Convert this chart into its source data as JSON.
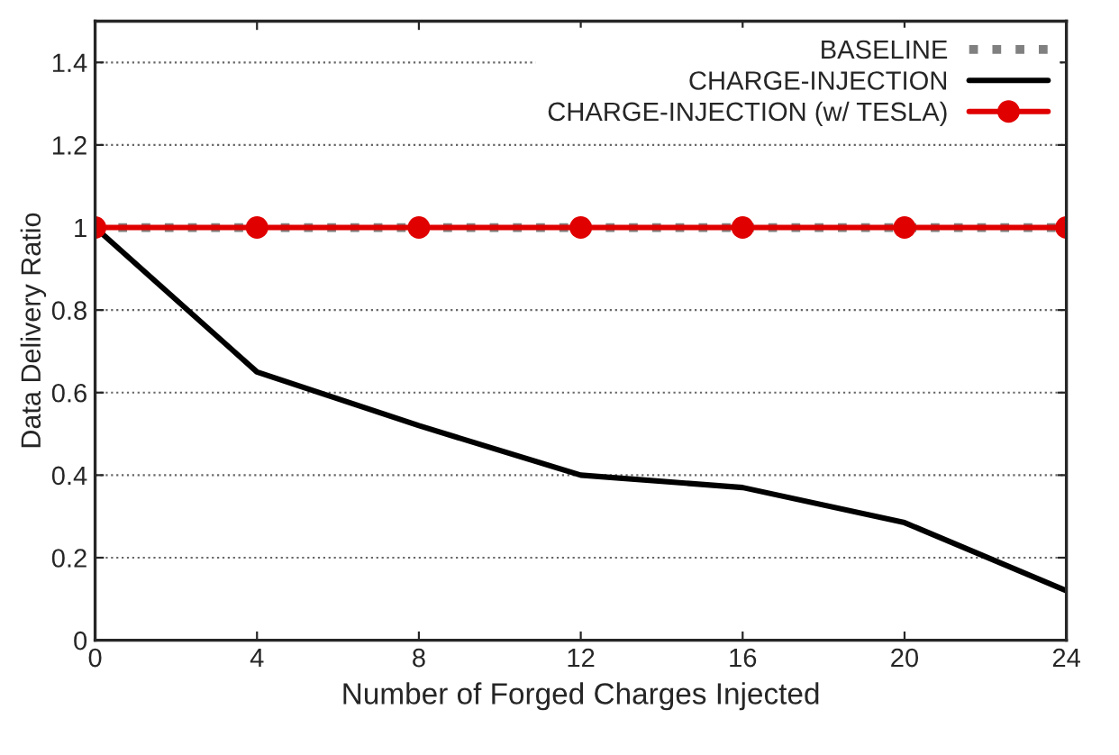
{
  "chart_data": {
    "type": "line",
    "xlabel": "Number of Forged Charges Injected",
    "ylabel": "Data Delivery Ratio",
    "x": [
      0,
      4,
      8,
      12,
      16,
      20,
      24
    ],
    "series": [
      {
        "name": "BASELINE",
        "color": "#808080",
        "values": [
          1,
          1,
          1,
          1,
          1,
          1,
          1
        ],
        "line_style": "dotted",
        "marker": "none"
      },
      {
        "name": "CHARGE-INJECTION",
        "color": "#000000",
        "values": [
          1,
          0.65,
          0.52,
          0.4,
          0.37,
          0.285,
          0.12
        ],
        "line_style": "solid",
        "marker": "none"
      },
      {
        "name": "CHARGE-INJECTION (w/ TESLA)",
        "color": "#e00000",
        "values": [
          1,
          1,
          1,
          1,
          1,
          1,
          1
        ],
        "line_style": "solid",
        "marker": "circle"
      }
    ],
    "xlim": [
      0,
      24
    ],
    "xticks": [
      0,
      4,
      8,
      12,
      16,
      20,
      24
    ],
    "ylim": [
      0,
      1.5
    ],
    "yticks": [
      0,
      0.2,
      0.4,
      0.6,
      0.8,
      1,
      1.2,
      1.4
    ],
    "grid": "y",
    "legend": "top right"
  }
}
